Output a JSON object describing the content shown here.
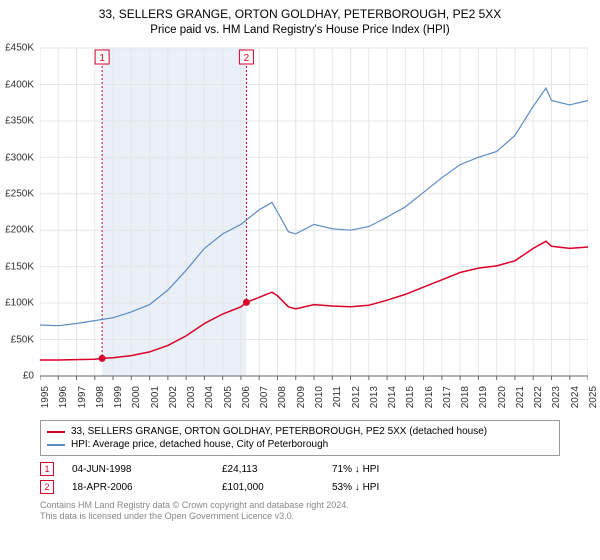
{
  "title": "33, SELLERS GRANGE, ORTON GOLDHAY, PETERBOROUGH, PE2 5XX",
  "subtitle": "Price paid vs. HM Land Registry's House Price Index (HPI)",
  "chart": {
    "type": "line",
    "background_color": "#ffffff",
    "gridline_color": "#e6e6e6",
    "axis_color": "#666666",
    "band_fill": "#e9f0f8",
    "band_start_year": 1998.4,
    "band_end_year": 2006.3,
    "y_axis": {
      "min": 0,
      "max": 450000,
      "step": 50000,
      "labels": [
        "£0",
        "£50K",
        "£100K",
        "£150K",
        "£200K",
        "£250K",
        "£300K",
        "£350K",
        "£400K",
        "£450K"
      ]
    },
    "x_axis": {
      "min": 1995,
      "max": 2025,
      "ticks": [
        1995,
        1996,
        1997,
        1998,
        1999,
        2000,
        2001,
        2002,
        2003,
        2004,
        2005,
        2006,
        2007,
        2008,
        2009,
        2010,
        2011,
        2012,
        2013,
        2014,
        2015,
        2016,
        2017,
        2018,
        2019,
        2020,
        2021,
        2022,
        2023,
        2024,
        2025
      ]
    },
    "series_property": {
      "label": "33, SELLERS GRANGE, ORTON GOLDHAY, PETERBOROUGH, PE2 5XX (detached house)",
      "color": "#d9002a",
      "width": 1.5,
      "data": [
        [
          1995,
          22000
        ],
        [
          1996,
          22000
        ],
        [
          1997,
          22500
        ],
        [
          1998,
          23000
        ],
        [
          1998.4,
          24113
        ],
        [
          1999,
          25000
        ],
        [
          2000,
          28000
        ],
        [
          2001,
          33000
        ],
        [
          2002,
          42000
        ],
        [
          2003,
          55000
        ],
        [
          2004,
          72000
        ],
        [
          2005,
          85000
        ],
        [
          2006,
          95000
        ],
        [
          2006.3,
          101000
        ],
        [
          2007,
          108000
        ],
        [
          2007.7,
          115000
        ],
        [
          2008,
          110000
        ],
        [
          2008.6,
          95000
        ],
        [
          2009,
          92000
        ],
        [
          2010,
          98000
        ],
        [
          2011,
          96000
        ],
        [
          2012,
          95000
        ],
        [
          2013,
          97000
        ],
        [
          2014,
          104000
        ],
        [
          2015,
          112000
        ],
        [
          2016,
          122000
        ],
        [
          2017,
          132000
        ],
        [
          2018,
          142000
        ],
        [
          2019,
          148000
        ],
        [
          2020,
          151000
        ],
        [
          2021,
          158000
        ],
        [
          2022,
          175000
        ],
        [
          2022.7,
          185000
        ],
        [
          2023,
          178000
        ],
        [
          2024,
          175000
        ],
        [
          2025,
          177000
        ]
      ]
    },
    "series_hpi": {
      "label": "HPI: Average price, detached house, City of Peterborough",
      "color": "#5b8bc5",
      "width": 1.2,
      "data": [
        [
          1995,
          70000
        ],
        [
          1996,
          69000
        ],
        [
          1997,
          72000
        ],
        [
          1998,
          76000
        ],
        [
          1999,
          80000
        ],
        [
          2000,
          88000
        ],
        [
          2001,
          98000
        ],
        [
          2002,
          118000
        ],
        [
          2003,
          145000
        ],
        [
          2004,
          175000
        ],
        [
          2005,
          195000
        ],
        [
          2006,
          208000
        ],
        [
          2007,
          228000
        ],
        [
          2007.7,
          238000
        ],
        [
          2008,
          225000
        ],
        [
          2008.6,
          198000
        ],
        [
          2009,
          195000
        ],
        [
          2010,
          208000
        ],
        [
          2011,
          202000
        ],
        [
          2012,
          200000
        ],
        [
          2013,
          205000
        ],
        [
          2014,
          218000
        ],
        [
          2015,
          232000
        ],
        [
          2016,
          252000
        ],
        [
          2017,
          272000
        ],
        [
          2018,
          290000
        ],
        [
          2019,
          300000
        ],
        [
          2020,
          308000
        ],
        [
          2021,
          330000
        ],
        [
          2022,
          370000
        ],
        [
          2022.7,
          395000
        ],
        [
          2023,
          378000
        ],
        [
          2024,
          372000
        ],
        [
          2025,
          378000
        ]
      ]
    },
    "annotations": [
      {
        "n": "1",
        "year": 1998.4,
        "value": 24113,
        "color": "#d9002a"
      },
      {
        "n": "2",
        "year": 2006.3,
        "value": 101000,
        "color": "#d9002a"
      }
    ]
  },
  "legend": [
    {
      "color": "#d9002a",
      "label": "33, SELLERS GRANGE, ORTON GOLDHAY, PETERBOROUGH, PE2 5XX (detached house)"
    },
    {
      "color": "#5b8bc5",
      "label": "HPI: Average price, detached house, City of Peterborough"
    }
  ],
  "annot_rows": [
    {
      "n": "1",
      "color": "#d9002a",
      "date": "04-JUN-1998",
      "price": "£24,113",
      "pct": "71% ↓ HPI"
    },
    {
      "n": "2",
      "color": "#d9002a",
      "date": "18-APR-2006",
      "price": "£101,000",
      "pct": "53% ↓ HPI"
    }
  ],
  "footnote_line1": "Contains HM Land Registry data © Crown copyright and database right 2024.",
  "footnote_line2": "This data is licensed under the Open Government Licence v3.0."
}
